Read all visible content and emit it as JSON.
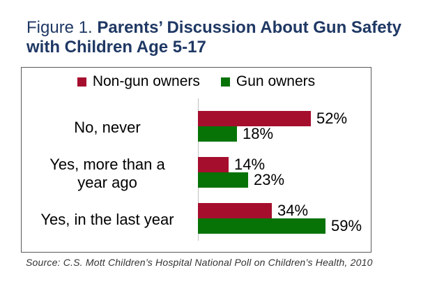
{
  "title": {
    "prefix": "Figure 1. ",
    "main": "Parents’ Discussion About Gun Safety\nwith Children Age 5-17"
  },
  "source": "Source: C.S. Mott Children’s Hospital National Poll on Children’s Health, 2010",
  "colors": {
    "non_gun_owners": "#A60E2E",
    "gun_owners": "#077307",
    "title_text": "#1F3864",
    "box_border": "#595959",
    "axis_line": "#BFBFBF"
  },
  "chart_data": {
    "type": "bar",
    "orientation": "horizontal",
    "title": "Parents’ Discussion About Gun Safety with Children Age 5-17",
    "categories": [
      "No, never",
      "Yes, more than a\nyear ago",
      "Yes, in the last year"
    ],
    "series": [
      {
        "name": "Non-gun owners",
        "color": "#A60E2E",
        "values": [
          52,
          14,
          34
        ]
      },
      {
        "name": "Gun owners",
        "color": "#077307",
        "values": [
          18,
          23,
          59
        ]
      }
    ],
    "value_suffix": "%",
    "data_labels": true,
    "legend_position": "top",
    "grid": false,
    "xlim": [
      0,
      80
    ]
  }
}
